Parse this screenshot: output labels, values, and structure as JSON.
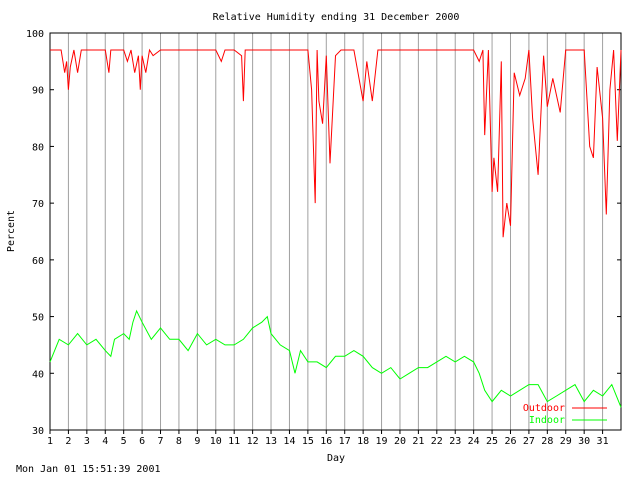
{
  "timestamp": "Mon Jan 01 15:51:39 2001",
  "chart_data": {
    "type": "line",
    "title": "Relative Humidity ending 31 December 2000",
    "xlabel": "Day",
    "ylabel": "Percent",
    "xlim": [
      1,
      32
    ],
    "ylim": [
      30,
      100
    ],
    "x_ticks": [
      1,
      2,
      3,
      4,
      5,
      6,
      7,
      8,
      9,
      10,
      11,
      12,
      13,
      14,
      15,
      16,
      17,
      18,
      19,
      20,
      21,
      22,
      23,
      24,
      25,
      26,
      27,
      28,
      29,
      30,
      31
    ],
    "x_tick_labels": [
      "1",
      "2",
      "3",
      "4",
      "5",
      "6",
      "7",
      "8",
      "9",
      "10",
      "11",
      "12",
      "13",
      "14",
      "15",
      "16",
      "17",
      "18",
      "19",
      "20",
      "21",
      "22",
      "23",
      "24",
      "25",
      "26",
      "27",
      "28",
      "29",
      "30",
      "31"
    ],
    "y_ticks": [
      30,
      40,
      50,
      60,
      70,
      80,
      90,
      100
    ],
    "y_tick_labels": [
      "30",
      "40",
      "50",
      "60",
      "70",
      "80",
      "90",
      "100"
    ],
    "grid": "vertical",
    "legend_placement": "bottom-right",
    "series": [
      {
        "name": "Outdoor",
        "color": "#ff0000",
        "x": [
          1,
          1.6,
          1.8,
          1.9,
          2,
          2.1,
          2.3,
          2.5,
          2.7,
          3,
          3.5,
          4,
          4.2,
          4.3,
          4.5,
          5,
          5.2,
          5.4,
          5.6,
          5.8,
          5.9,
          6,
          6.2,
          6.4,
          6.6,
          7,
          7.2,
          8,
          9,
          10,
          10.3,
          10.5,
          11,
          11.4,
          11.5,
          11.6,
          12,
          13,
          14,
          14.5,
          15,
          15.2,
          15.4,
          15.5,
          15.6,
          15.8,
          16,
          16.2,
          16.5,
          16.8,
          17,
          17.5,
          18,
          18.2,
          18.5,
          18.8,
          19,
          20,
          21,
          22,
          23,
          24,
          24.3,
          24.5,
          24.6,
          24.8,
          25,
          25.1,
          25.3,
          25.5,
          25.6,
          25.8,
          26,
          26.2,
          26.5,
          26.8,
          27,
          27.2,
          27.5,
          27.8,
          28,
          28.3,
          28.7,
          29,
          29.2,
          29.5,
          30,
          30.3,
          30.5,
          30.7,
          31,
          31.2,
          31.4,
          31.6,
          31.8,
          32
        ],
        "values": [
          97,
          97,
          93,
          95,
          90,
          94,
          97,
          93,
          97,
          97,
          97,
          97,
          93,
          97,
          97,
          97,
          95,
          97,
          93,
          96,
          90,
          96,
          93,
          97,
          96,
          97,
          97,
          97,
          97,
          97,
          95,
          97,
          97,
          96,
          88,
          97,
          97,
          97,
          97,
          97,
          97,
          90,
          70,
          97,
          88,
          84,
          96,
          77,
          96,
          97,
          97,
          97,
          88,
          95,
          88,
          97,
          97,
          97,
          97,
          97,
          97,
          97,
          95,
          97,
          82,
          97,
          72,
          78,
          72,
          95,
          64,
          70,
          66,
          93,
          89,
          92,
          97,
          85,
          75,
          96,
          87,
          92,
          86,
          97,
          97,
          97,
          97,
          80,
          78,
          94,
          85,
          68,
          90,
          97,
          81,
          97
        ]
      },
      {
        "name": "Indoor",
        "color": "#00ff00",
        "x": [
          1,
          1.5,
          2,
          2.5,
          3,
          3.5,
          4,
          4.3,
          4.5,
          5,
          5.3,
          5.5,
          5.7,
          6,
          6.5,
          7,
          7.5,
          8,
          8.5,
          9,
          9.5,
          10,
          10.5,
          11,
          11.5,
          12,
          12.5,
          12.8,
          13,
          13.5,
          14,
          14.3,
          14.6,
          15,
          15.5,
          16,
          16.5,
          17,
          17.5,
          18,
          18.5,
          19,
          19.5,
          20,
          20.5,
          21,
          21.5,
          22,
          22.5,
          23,
          23.5,
          24,
          24.3,
          24.6,
          25,
          25.5,
          26,
          26.5,
          27,
          27.5,
          28,
          28.5,
          29,
          29.5,
          30,
          30.5,
          31,
          31.5,
          32
        ],
        "values": [
          42,
          46,
          45,
          47,
          45,
          46,
          44,
          43,
          46,
          47,
          46,
          49,
          51,
          49,
          46,
          48,
          46,
          46,
          44,
          47,
          45,
          46,
          45,
          45,
          46,
          48,
          49,
          50,
          47,
          45,
          44,
          40,
          44,
          42,
          42,
          41,
          43,
          43,
          44,
          43,
          41,
          40,
          41,
          39,
          40,
          41,
          41,
          42,
          43,
          42,
          43,
          42,
          40,
          37,
          35,
          37,
          36,
          37,
          38,
          38,
          35,
          36,
          37,
          38,
          35,
          37,
          36,
          38,
          34
        ]
      }
    ]
  }
}
